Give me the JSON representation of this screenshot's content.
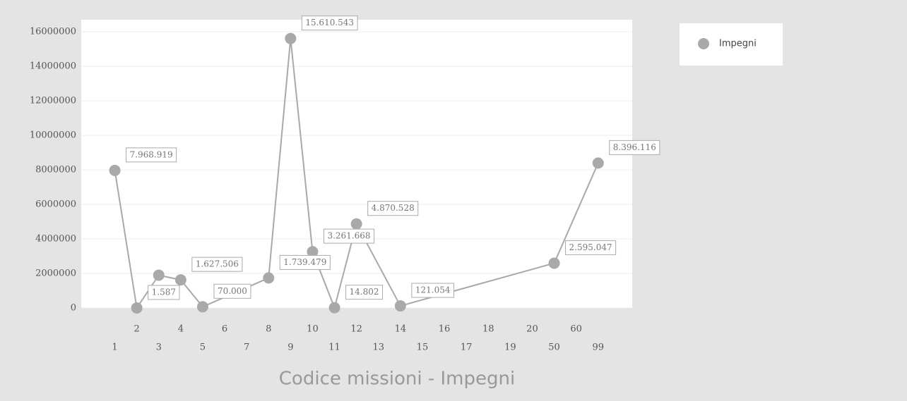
{
  "chart_data": {
    "type": "line",
    "title": "Codice missioni - Impegni",
    "categories": [
      "1",
      "2",
      "3",
      "4",
      "5",
      "6",
      "7",
      "8",
      "9",
      "10",
      "11",
      "12",
      "13",
      "14",
      "15",
      "16",
      "17",
      "18",
      "19",
      "20",
      "50",
      "60",
      "99"
    ],
    "series": [
      {
        "name": "Impegni",
        "color": "#a9a9a9",
        "values": [
          7968919,
          1587,
          1900000,
          1627506,
          70000,
          null,
          null,
          1739479,
          15610543,
          3261668,
          14802,
          4870528,
          null,
          121054,
          null,
          null,
          null,
          null,
          null,
          null,
          2595047,
          null,
          8396116
        ],
        "value_labels": [
          "7.968.919",
          "1.587",
          null,
          "1.627.506",
          "70.000",
          null,
          null,
          "1.739.479",
          "15.610.543",
          "3.261.668",
          "14.802",
          "4.870.528",
          null,
          "121.054",
          null,
          null,
          null,
          null,
          null,
          null,
          "2.595.047",
          null,
          "8.396.116"
        ]
      }
    ],
    "ylim": [
      0,
      16700000
    ],
    "yticks": [
      0,
      2000000,
      4000000,
      6000000,
      8000000,
      10000000,
      12000000,
      14000000,
      16000000
    ],
    "grid": true,
    "legend": "top-right"
  }
}
